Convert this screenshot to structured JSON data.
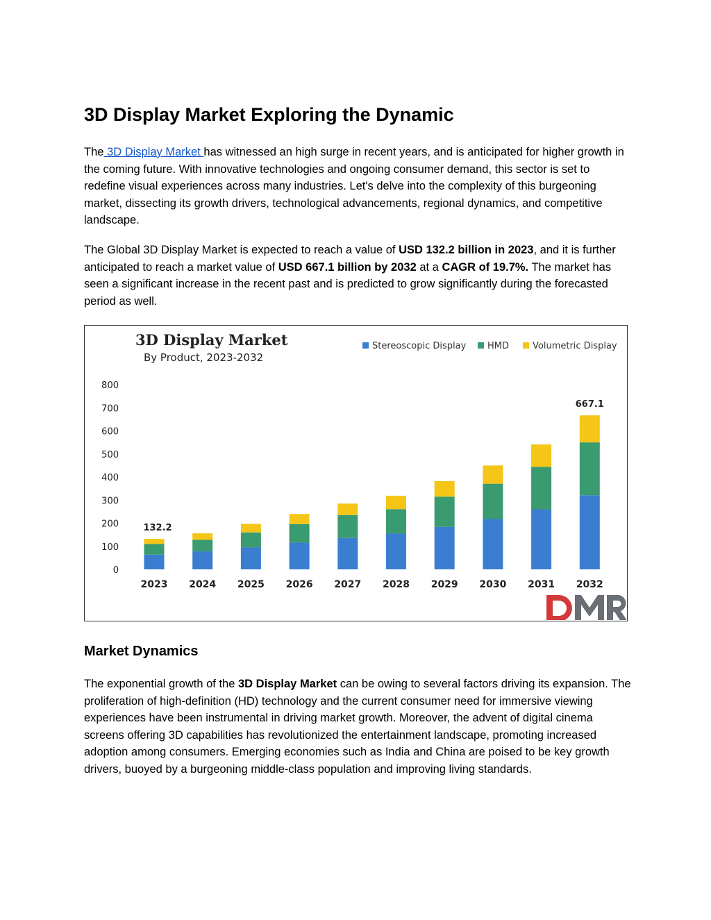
{
  "title": "3D Display Market Exploring the Dynamic",
  "intro": {
    "pre": "The",
    "link": " 3D Display Market ",
    "post": "has witnessed an high surge in recent years, and is anticipated for higher growth in the coming future. With innovative technologies and ongoing consumer demand, this sector is set to redefine visual experiences across many industries. Let's delve into the complexity of this burgeoning market, dissecting its growth drivers, technological advancements, regional dynamics, and competitive landscape."
  },
  "market": {
    "t1": "The Global 3D Display Market is expected to reach a value of ",
    "b1": "USD 132.2 billion in 2023",
    "t2": ", and it is further anticipated to reach a market value of ",
    "b2": "USD 667.1 billion by 2032",
    "t3": " at a ",
    "b3": "CAGR of 19.7%.",
    "t4": " The market has seen a significant increase in the recent past and is predicted to grow significantly during the forecasted period as well."
  },
  "dynamics": {
    "heading": "Market Dynamics",
    "t1": "The exponential growth of the ",
    "b1": "3D Display Market",
    "t2": " can be owing to several factors driving its expansion. The proliferation of high-definition (HD) technology and the current consumer need for immersive viewing experiences have been instrumental in driving market growth. Moreover, the advent of digital cinema screens offering 3D capabilities has revolutionized the entertainment landscape, promoting increased adoption among consumers. Emerging economies such as India and China are poised to be key growth drivers, buoyed by a burgeoning middle-class population and improving living standards."
  },
  "chart_data": {
    "type": "bar",
    "stacked": true,
    "title": "3D Display Market",
    "subtitle": "By Product, 2023-2032",
    "categories": [
      "2023",
      "2024",
      "2025",
      "2026",
      "2027",
      "2028",
      "2029",
      "2030",
      "2031",
      "2032"
    ],
    "series": [
      {
        "name": "Stereoscopic Display",
        "color": "#3a7dd1",
        "values": [
          64,
          78,
          95,
          116,
          136,
          155,
          184,
          218,
          260,
          321
        ]
      },
      {
        "name": "HMD",
        "color": "#3a9a70",
        "values": [
          46,
          50,
          65,
          80,
          99,
          106,
          131,
          153,
          184,
          229
        ]
      },
      {
        "name": "Volumetric Display",
        "color": "#f5c518",
        "values": [
          22,
          28,
          37,
          44,
          50,
          58,
          67,
          79,
          97,
          117
        ]
      }
    ],
    "data_labels": [
      {
        "category": "2023",
        "text": "132.2"
      },
      {
        "category": "2032",
        "text": "667.1"
      }
    ],
    "yticks": [
      0,
      100,
      200,
      300,
      400,
      500,
      600,
      700,
      800
    ],
    "ylim": [
      0,
      800
    ],
    "grid": false,
    "legend": "top-right",
    "logo": "DMR"
  }
}
